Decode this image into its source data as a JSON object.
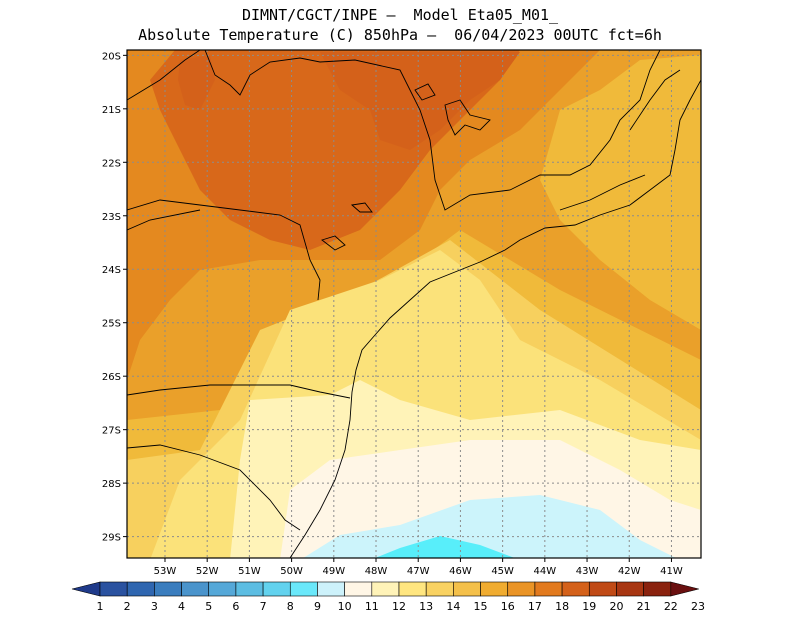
{
  "title": {
    "line1": "DIMNT/CGCT/INPE –  Model Eta05_M01_",
    "line2": "Absolute Temperature (C) 850hPa –  06/04/2023 00UTC fct=6h"
  },
  "map": {
    "lon_range": [
      -53.9,
      -40.3
    ],
    "lat_range": [
      -29.4,
      -19.9
    ],
    "lon_ticks": [
      "53W",
      "52W",
      "51W",
      "50W",
      "49W",
      "48W",
      "47W",
      "46W",
      "45W",
      "44W",
      "43W",
      "42W",
      "41W"
    ],
    "lat_ticks": [
      "20S",
      "21S",
      "22S",
      "23S",
      "24S",
      "25S",
      "26S",
      "27S",
      "28S",
      "29S"
    ]
  },
  "colorbar": {
    "labels": [
      "1",
      "2",
      "3",
      "4",
      "5",
      "6",
      "7",
      "8",
      "9",
      "10",
      "11",
      "12",
      "13",
      "14",
      "15",
      "16",
      "17",
      "18",
      "19",
      "20",
      "21",
      "22",
      "23"
    ],
    "colors": [
      "#1f3a8a",
      "#2a52a0",
      "#2f66b0",
      "#3a7dbe",
      "#4a94cc",
      "#55a8d8",
      "#5cbde2",
      "#62d2ee",
      "#6ae8fa",
      "#cdf2fb",
      "#fff6e6",
      "#fff3b8",
      "#ffe680",
      "#f9d262",
      "#f4c04a",
      "#f0ac30",
      "#ea9426",
      "#e27a1e",
      "#d4611a",
      "#c04a16",
      "#a83612",
      "#8a220e",
      "#6a1010"
    ]
  },
  "colors": {
    "c11": "#fff6e6",
    "c12": "#fff3b8",
    "c13": "#fbe27a",
    "c14": "#f7d05e",
    "c15": "#f0ba3a",
    "c16": "#eaa02a",
    "c17": "#e4891f",
    "c18": "#d8681a",
    "cyan": "#58eefa",
    "lightcyan": "#ccf4fb"
  }
}
